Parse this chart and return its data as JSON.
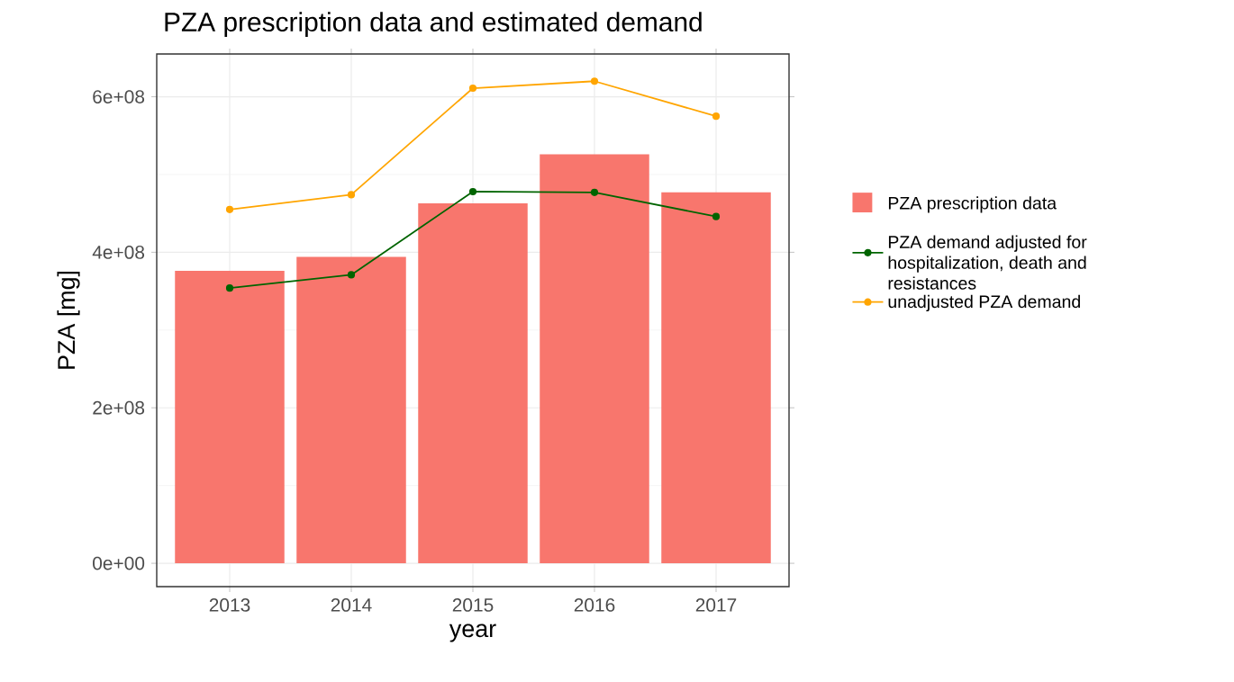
{
  "chart_data": {
    "type": "bar",
    "title": "PZA prescription data and estimated demand",
    "xlabel": "year",
    "ylabel": "PZA [mg]",
    "categories": [
      "2013",
      "2014",
      "2015",
      "2016",
      "2017"
    ],
    "series": [
      {
        "name": "PZA prescription data",
        "color": "#f8766d",
        "values": [
          376000000,
          394000000,
          463000000,
          526000000,
          477000000
        ]
      },
      {
        "name": "PZA demand adjusted for hospitalization, death and resistances",
        "type": "line",
        "color": "#006400",
        "values": [
          354000000,
          371000000,
          478000000,
          477000000,
          446000000
        ]
      },
      {
        "name": "unadjusted PZA demand",
        "type": "line",
        "color": "#ffa500",
        "values": [
          455000000,
          474000000,
          611000000,
          620000000,
          575000000
        ]
      }
    ],
    "ylim": [
      -30000000,
      655000000
    ],
    "yticks": [
      {
        "value": 0,
        "label": "0e+00"
      },
      {
        "value": 200000000,
        "label": "2e+08"
      },
      {
        "value": 400000000,
        "label": "4e+08"
      },
      {
        "value": 600000000,
        "label": "6e+08"
      }
    ],
    "grid": true,
    "legend": "right",
    "marker": "circle"
  }
}
